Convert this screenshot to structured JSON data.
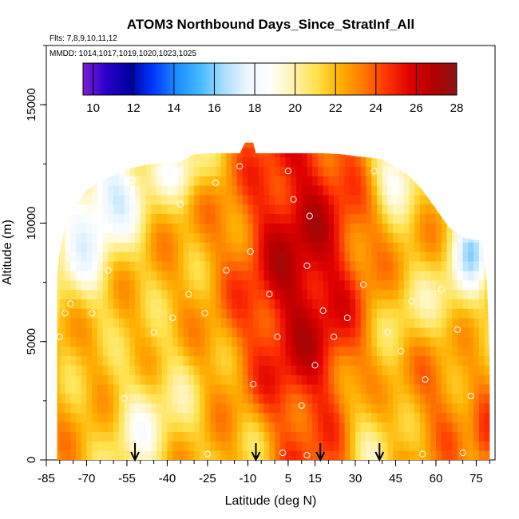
{
  "chart_data": {
    "type": "heatmap",
    "title": "ATOM3 Northbound Days_Since_StratInf_All",
    "flights_label": "Flts: 7,8,9,10,11,12",
    "mmdd_label": "MMDD: 1014,1017,1019,1020,1023,1025",
    "xlabel": "Latitude (deg N)",
    "ylabel": "Altitude (m)",
    "xlim": [
      -85,
      82
    ],
    "ylim": [
      0,
      17500
    ],
    "x_ticks": [
      -85,
      -70,
      -55,
      -40,
      -25,
      -10,
      5,
      15,
      30,
      45,
      60,
      75
    ],
    "x_tick_labels": [
      "-85",
      "-70",
      "-55",
      "-40",
      "-25",
      "-10",
      "5",
      "15",
      "30",
      "45",
      "60",
      "75"
    ],
    "y_ticks": [
      0,
      5000,
      10000,
      15000
    ],
    "y_tick_labels": [
      "0",
      "5000",
      "10000",
      "15000"
    ],
    "colorbar": {
      "min": 9.5,
      "max": 28,
      "tick_values": [
        10,
        12,
        14,
        16,
        18,
        20,
        22,
        24,
        26,
        28
      ],
      "tick_labels": [
        "10",
        "12",
        "14",
        "16",
        "18",
        "20",
        "22",
        "24",
        "26",
        "28"
      ],
      "colors": [
        "#7a1fd6",
        "#2a00c8",
        "#0000a0",
        "#0038ff",
        "#1a8cff",
        "#42b9ff",
        "#a8dcff",
        "#eaf6ff",
        "#ffffff",
        "#fff3b0",
        "#ffe14a",
        "#ffb000",
        "#ff7a00",
        "#ff3300",
        "#e00000",
        "#b30000",
        "#8a1515"
      ]
    },
    "arrows_latitude": [
      -52,
      -7,
      17,
      39
    ],
    "colors": {
      "axis": "#000000",
      "marker": "#ffffff"
    },
    "field_description": "Days since stratospheric influence; max (~26-27) near 0-20N in mid/upper troposphere, min (~15-17) near poles aloft and in boundary layer",
    "observations": [
      {
        "lat": -80,
        "alt": 5200
      },
      {
        "lat": -78,
        "alt": 6200
      },
      {
        "lat": -76,
        "alt": 6600
      },
      {
        "lat": -74,
        "alt": 10500
      },
      {
        "lat": -72,
        "alt": 10450
      },
      {
        "lat": -68,
        "alt": 6200
      },
      {
        "lat": -62,
        "alt": 8000
      },
      {
        "lat": -56,
        "alt": 2600
      },
      {
        "lat": -53,
        "alt": 11800
      },
      {
        "lat": -45,
        "alt": 5400
      },
      {
        "lat": -38,
        "alt": 6000
      },
      {
        "lat": -35,
        "alt": 10800
      },
      {
        "lat": -32,
        "alt": 7000
      },
      {
        "lat": -26,
        "alt": 6200
      },
      {
        "lat": -22,
        "alt": 11700
      },
      {
        "lat": -18,
        "alt": 8000
      },
      {
        "lat": -13,
        "alt": 12400
      },
      {
        "lat": -9,
        "alt": 8800
      },
      {
        "lat": -8,
        "alt": 3200
      },
      {
        "lat": -2,
        "alt": 7000
      },
      {
        "lat": 1,
        "alt": 5200
      },
      {
        "lat": 5,
        "alt": 12200
      },
      {
        "lat": 7,
        "alt": 11000
      },
      {
        "lat": 10,
        "alt": 2300
      },
      {
        "lat": 12,
        "alt": 8200
      },
      {
        "lat": 13,
        "alt": 10300
      },
      {
        "lat": 15,
        "alt": 4000
      },
      {
        "lat": 18,
        "alt": 6300
      },
      {
        "lat": 22,
        "alt": 5200
      },
      {
        "lat": 27,
        "alt": 6000
      },
      {
        "lat": 33,
        "alt": 7400
      },
      {
        "lat": 37,
        "alt": 12200
      },
      {
        "lat": 42,
        "alt": 5400
      },
      {
        "lat": 47,
        "alt": 4600
      },
      {
        "lat": 51,
        "alt": 6700
      },
      {
        "lat": 56,
        "alt": 3400
      },
      {
        "lat": 62,
        "alt": 7200
      },
      {
        "lat": 68,
        "alt": 5500
      },
      {
        "lat": 73,
        "alt": 2700
      },
      {
        "lat": 78,
        "alt": 9100
      },
      {
        "lat": -50,
        "alt": 300
      },
      {
        "lat": -25,
        "alt": 250
      },
      {
        "lat": 3,
        "alt": 300
      },
      {
        "lat": 12,
        "alt": 200
      },
      {
        "lat": 38,
        "alt": 300
      },
      {
        "lat": 55,
        "alt": 250
      },
      {
        "lat": 70,
        "alt": 300
      }
    ]
  }
}
